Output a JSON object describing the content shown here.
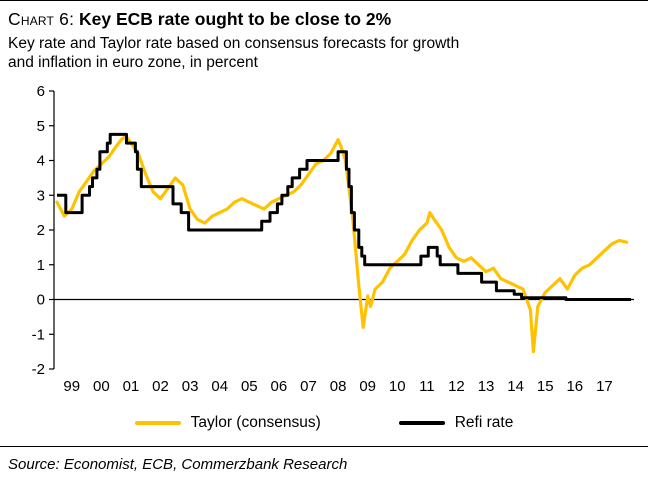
{
  "header": {
    "label": "Chart 6:",
    "title": "Key ECB rate ought to be close to 2%",
    "subtitle_line1": "Key rate and Taylor rate based on consensus forecasts for growth",
    "subtitle_line2": "and inflation in euro zone, in percent"
  },
  "legend": [
    {
      "label": "Taylor (consensus)",
      "color": "#FFC200"
    },
    {
      "label": "Refi rate",
      "color": "#000000"
    }
  ],
  "source": "Source: Economist, ECB, Commerzbank Research",
  "chart_data": {
    "type": "line",
    "title": "Key ECB rate ought to be close to 2%",
    "xlabel": "",
    "ylabel": "percent",
    "grid": false,
    "legend_position": "bottom",
    "ylim": [
      -2,
      6
    ],
    "yticks": [
      -2,
      -1,
      0,
      1,
      2,
      3,
      4,
      5,
      6
    ],
    "xlim": [
      1998.9,
      2018.5
    ],
    "xticks": [
      1999,
      2000,
      2001,
      2002,
      2003,
      2004,
      2005,
      2006,
      2007,
      2008,
      2009,
      2010,
      2011,
      2012,
      2013,
      2014,
      2015,
      2016,
      2017
    ],
    "xtick_labels": [
      "99",
      "00",
      "01",
      "02",
      "03",
      "04",
      "05",
      "06",
      "07",
      "08",
      "09",
      "10",
      "11",
      "12",
      "13",
      "14",
      "15",
      "16",
      "17"
    ],
    "series": [
      {
        "name": "Taylor (consensus)",
        "color": "#FFC200",
        "style": "line",
        "x": [
          1999.0,
          1999.25,
          1999.5,
          1999.75,
          2000.0,
          2000.25,
          2000.5,
          2000.75,
          2001.0,
          2001.17,
          2001.33,
          2001.5,
          2001.75,
          2002.0,
          2002.25,
          2002.5,
          2002.75,
          2003.0,
          2003.25,
          2003.5,
          2003.75,
          2004.0,
          2004.25,
          2004.5,
          2004.75,
          2005.0,
          2005.25,
          2005.5,
          2005.75,
          2006.0,
          2006.25,
          2006.5,
          2006.75,
          2007.0,
          2007.25,
          2007.5,
          2007.75,
          2008.0,
          2008.25,
          2008.5,
          2008.6,
          2008.75,
          2009.0,
          2009.2,
          2009.35,
          2009.5,
          2009.6,
          2009.75,
          2010.0,
          2010.25,
          2010.5,
          2010.75,
          2011.0,
          2011.25,
          2011.5,
          2011.6,
          2011.75,
          2012.0,
          2012.25,
          2012.5,
          2012.75,
          2013.0,
          2013.25,
          2013.5,
          2013.75,
          2014.0,
          2014.25,
          2014.5,
          2014.75,
          2015.0,
          2015.1,
          2015.25,
          2015.5,
          2015.75,
          2016.0,
          2016.25,
          2016.5,
          2016.75,
          2017.0,
          2017.25,
          2017.5,
          2017.75,
          2018.0,
          2018.25
        ],
        "y": [
          2.8,
          2.4,
          2.6,
          3.1,
          3.4,
          3.7,
          3.9,
          4.1,
          4.4,
          4.6,
          4.7,
          4.5,
          4.2,
          3.6,
          3.1,
          2.9,
          3.2,
          3.5,
          3.3,
          2.6,
          2.3,
          2.2,
          2.4,
          2.5,
          2.6,
          2.8,
          2.9,
          2.8,
          2.7,
          2.6,
          2.8,
          2.9,
          3.0,
          3.1,
          3.3,
          3.6,
          3.9,
          4.0,
          4.2,
          4.6,
          4.4,
          4.0,
          2.3,
          0.4,
          -0.8,
          0.1,
          -0.2,
          0.3,
          0.5,
          0.9,
          1.1,
          1.3,
          1.7,
          2.0,
          2.2,
          2.5,
          2.3,
          2.0,
          1.5,
          1.2,
          1.1,
          1.2,
          1.0,
          0.8,
          0.9,
          0.6,
          0.5,
          0.4,
          0.3,
          -0.3,
          -1.5,
          -0.2,
          0.2,
          0.4,
          0.6,
          0.3,
          0.7,
          0.9,
          1.0,
          1.2,
          1.4,
          1.6,
          1.7,
          1.65
        ]
      },
      {
        "name": "Refi rate",
        "color": "#000000",
        "style": "step",
        "x": [
          1999.0,
          1999.3,
          1999.85,
          2000.1,
          2000.2,
          2000.35,
          2000.45,
          2000.7,
          2000.8,
          2001.35,
          2001.65,
          2001.72,
          2001.85,
          2002.92,
          2003.2,
          2003.45,
          2005.92,
          2006.2,
          2006.45,
          2006.6,
          2006.8,
          2006.95,
          2007.2,
          2007.45,
          2008.5,
          2008.78,
          2008.87,
          2008.95,
          2009.05,
          2009.2,
          2009.3,
          2009.4,
          2011.3,
          2011.55,
          2011.85,
          2011.95,
          2012.55,
          2013.35,
          2013.85,
          2014.45,
          2014.7,
          2016.2,
          2018.4
        ],
        "y": [
          3.0,
          2.5,
          3.0,
          3.25,
          3.5,
          3.75,
          4.25,
          4.5,
          4.75,
          4.5,
          4.25,
          3.75,
          3.25,
          2.75,
          2.5,
          2.0,
          2.25,
          2.5,
          2.75,
          3.0,
          3.25,
          3.5,
          3.75,
          4.0,
          4.25,
          3.75,
          3.25,
          2.5,
          2.0,
          1.5,
          1.25,
          1.0,
          1.25,
          1.5,
          1.25,
          1.0,
          0.75,
          0.5,
          0.25,
          0.15,
          0.05,
          0.0,
          0.0
        ]
      }
    ]
  }
}
